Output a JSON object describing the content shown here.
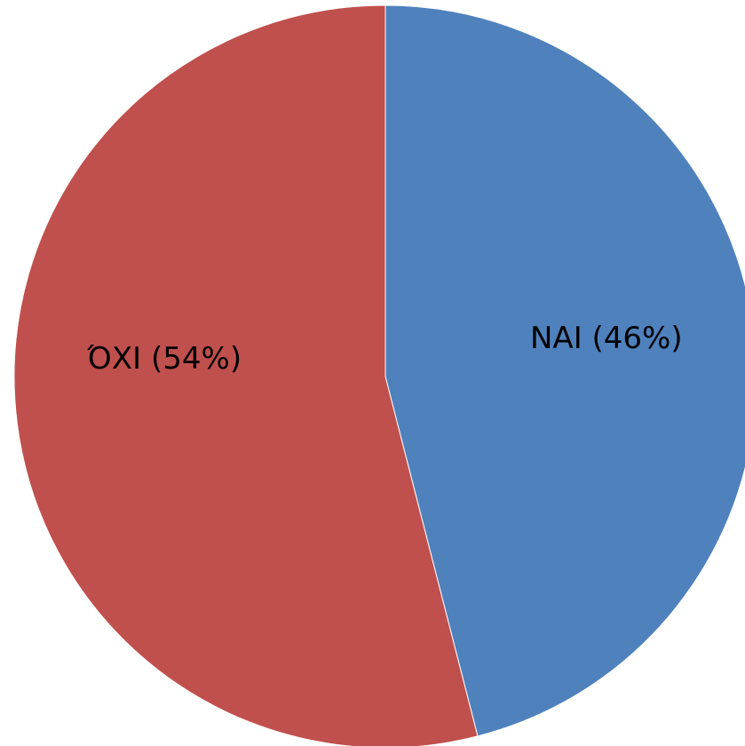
{
  "chart_data": {
    "type": "pie",
    "values": [
      46,
      54
    ],
    "value_labels": [
      "ΝΑΙ (46%)",
      "ΌΧΙ (54%)"
    ],
    "colors": [
      "#4f81bd",
      "#c0504d"
    ]
  }
}
